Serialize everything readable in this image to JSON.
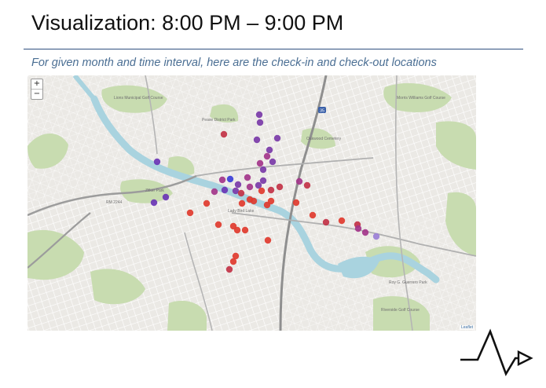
{
  "slide": {
    "title": "Visualization: 8:00 PM – 9:00 PM",
    "subtitle": "For given month and time interval, here are the check-in and check-out locations"
  },
  "map": {
    "zoom_in": "+",
    "zoom_out": "−",
    "attribution": "Leaflet",
    "labels": [
      {
        "id": "golf-course-nw",
        "text": "Lions Municipal Golf Course"
      },
      {
        "id": "park-nw",
        "text": "Pease District Park"
      },
      {
        "id": "cemetery",
        "text": "Oakwood Cemetery"
      },
      {
        "id": "golf-course-ne",
        "text": "Morris Williams Golf Course"
      },
      {
        "id": "park-w",
        "text": "Zilker Park"
      },
      {
        "id": "road-rm2244",
        "text": "RM 2244"
      },
      {
        "id": "ladybird-lake",
        "text": "Lady Bird Lake"
      },
      {
        "id": "riverside",
        "text": "Riverside Golf Course"
      },
      {
        "id": "roy-guerrero",
        "text": "Roy G. Guerrero Park"
      },
      {
        "id": "interstate",
        "text": "35"
      }
    ],
    "marker_colors": {
      "red": "#e03a2e",
      "crimson": "#c23246",
      "magenta": "#a3358a",
      "violet": "#7a3aa8",
      "purple": "#6a35b5",
      "lavender": "#9b7fd6",
      "blue": "#3b3fd8"
    },
    "water_color": "#a9d3df",
    "park_color": "#c8dcb0",
    "road_color": "#ffffff",
    "highway_color": "#9a9a9a",
    "markers_legend_note": ""
  }
}
